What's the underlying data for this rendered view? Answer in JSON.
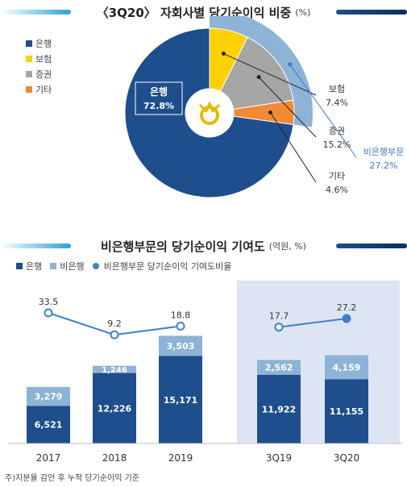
{
  "title1": {
    "text": "〈3Q20〉 자회사별 당기순이익 비중",
    "unit": "(%)"
  },
  "title2": {
    "text": "비은행부문의 당기순이익 기여도",
    "unit": "(억원, %)"
  },
  "colors": {
    "bank": "#1f4e8c",
    "insurance": "#fdd000",
    "securities": "#a6a6a6",
    "other": "#f08a35",
    "nonbank_ring": "#8db3d6",
    "nonbank_label": "#3a78c2",
    "highlight_bg": "#dde5f4",
    "ratio_line": "#3f7fcc"
  },
  "legend1": [
    {
      "label": "은행",
      "color": "#1f4e8c"
    },
    {
      "label": "보험",
      "color": "#fdd000"
    },
    {
      "label": "증권",
      "color": "#a6a6a6"
    },
    {
      "label": "기타",
      "color": "#f08a35"
    }
  ],
  "legend2": {
    "bank": "은행",
    "nonbank": "비은행",
    "ratio": "비은행부문 당기순이익 기여도비율"
  },
  "chart_data": [
    {
      "type": "pie",
      "title": "〈3Q20〉 자회사별 당기순이익 비중",
      "unit": "%",
      "slices": [
        {
          "name": "은행",
          "value": 72.8,
          "label": "72.8%"
        },
        {
          "name": "보험",
          "value": 7.4,
          "label": "7.4%"
        },
        {
          "name": "증권",
          "value": 15.2,
          "label": "15.2%"
        },
        {
          "name": "기타",
          "value": 4.6,
          "label": "4.6%"
        }
      ],
      "group": {
        "name": "비은행부문",
        "value": 27.2,
        "label": "27.2%"
      }
    },
    {
      "type": "bar",
      "stacked": true,
      "title": "비은행부문의 당기순이익 기여도",
      "unit": "억원, %",
      "categories": [
        "2017",
        "2018",
        "2019",
        "3Q19",
        "3Q20"
      ],
      "series": [
        {
          "name": "은행",
          "values": [
            6521,
            12226,
            15171,
            11922,
            11155
          ],
          "labels": [
            "6,521",
            "12,226",
            "15,171",
            "11,922",
            "11,155"
          ]
        },
        {
          "name": "비은행",
          "values": [
            3279,
            1246,
            3503,
            2562,
            4159
          ],
          "labels": [
            "3,279",
            "1,246",
            "3,503",
            "2,562",
            "4,159"
          ]
        }
      ],
      "line": {
        "name": "비은행부문 당기순이익 기여도비율",
        "values": [
          33.5,
          9.2,
          18.8,
          17.7,
          27.2
        ],
        "labels": [
          "33.5",
          "9.2",
          "18.8",
          "17.7",
          "27.2"
        ],
        "groups": [
          [
            0,
            1,
            2
          ],
          [
            3,
            4
          ]
        ]
      },
      "highlight": [
        "3Q19",
        "3Q20"
      ]
    }
  ],
  "footnote": "주)지분율 감안 후 누적 당기순이익 기준"
}
